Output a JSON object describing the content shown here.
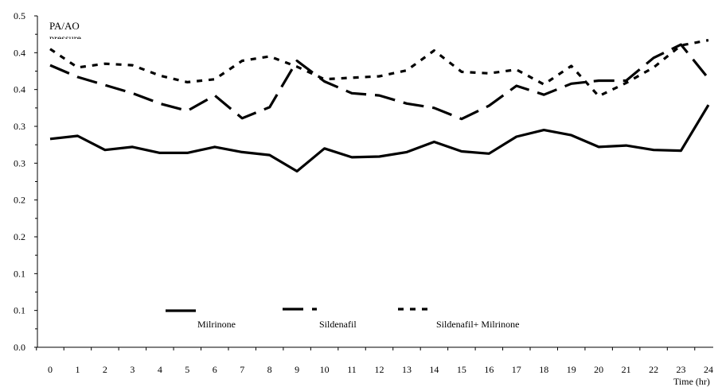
{
  "chart_data": {
    "type": "line",
    "ylabel": "PA/AO",
    "ylabel_cut": "pressure",
    "xlabel": "Time (hr)",
    "x": [
      0,
      1,
      2,
      3,
      4,
      5,
      6,
      7,
      8,
      9,
      10,
      11,
      12,
      13,
      14,
      15,
      16,
      17,
      18,
      19,
      20,
      21,
      22,
      23,
      24
    ],
    "x_tick_labels": [
      "0",
      "1",
      "2",
      "3",
      "4",
      "5",
      "6",
      "7",
      "8",
      "9",
      "10",
      "11",
      "12",
      "13",
      "14",
      "15",
      "16",
      "17",
      "18",
      "19",
      "20",
      "21",
      "22",
      "23",
      "24"
    ],
    "y_tick_labels": [
      "0.5",
      "0.4",
      "0.4",
      "0.3",
      "0.3",
      "0.2",
      "0.2",
      "0.1",
      "0.1",
      "0.0"
    ],
    "ylim": [
      0,
      0.45
    ],
    "grid": false,
    "legend_placement": "bottom",
    "series": [
      {
        "name": "Milrinone",
        "style": "solid",
        "color": "#000000",
        "values": [
          0.283,
          0.287,
          0.268,
          0.272,
          0.264,
          0.264,
          0.272,
          0.265,
          0.261,
          0.239,
          0.27,
          0.258,
          0.259,
          0.265,
          0.279,
          0.266,
          0.263,
          0.286,
          0.295,
          0.288,
          0.272,
          0.274,
          0.268,
          0.267,
          0.329
        ]
      },
      {
        "name": "Sildenafil",
        "style": "long-dash",
        "color": "#000000",
        "values": [
          0.383,
          0.367,
          0.356,
          0.345,
          0.331,
          0.321,
          0.342,
          0.311,
          0.326,
          0.389,
          0.361,
          0.345,
          0.342,
          0.331,
          0.325,
          0.31,
          0.328,
          0.355,
          0.343,
          0.358,
          0.362,
          0.362,
          0.393,
          0.411,
          0.365
        ]
      },
      {
        "name": "Sildenafil+ Milrinone",
        "style": "short-dash",
        "color": "#000000",
        "values": [
          0.405,
          0.38,
          0.385,
          0.383,
          0.369,
          0.36,
          0.364,
          0.389,
          0.395,
          0.381,
          0.364,
          0.366,
          0.368,
          0.376,
          0.403,
          0.374,
          0.372,
          0.377,
          0.357,
          0.382,
          0.341,
          0.359,
          0.38,
          0.41,
          0.417
        ]
      }
    ]
  }
}
